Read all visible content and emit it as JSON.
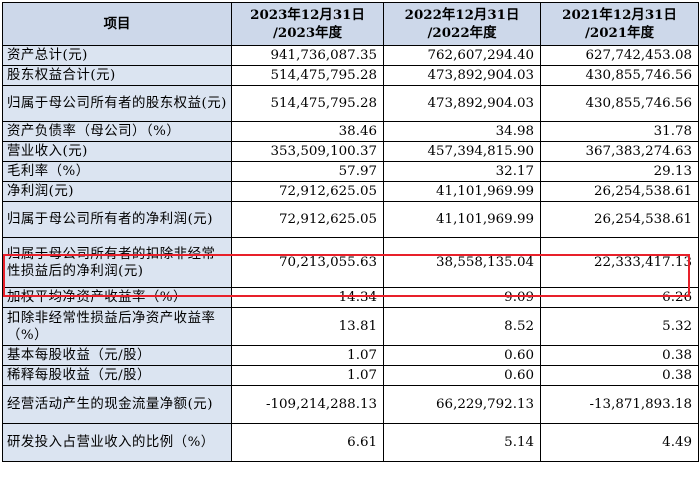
{
  "headers": [
    "项目",
    "2023年12月31日\n/2023年度",
    "2022年12月31日\n/2022年度",
    "2021年12月31日\n/2021年度"
  ],
  "rows": [
    {
      "label": "资产总计(元)",
      "v": [
        "941,736,087.35",
        "762,607,294.40",
        "627,742,453.08"
      ]
    },
    {
      "label": "股东权益合计(元)",
      "v": [
        "514,475,795.28",
        "473,892,904.03",
        "430,855,746.56"
      ]
    },
    {
      "label": "归属于母公司所有者的股东权益(元)",
      "v": [
        "514,475,795.28",
        "473,892,904.03",
        "430,855,746.56"
      ]
    },
    {
      "label": "资产负债率（母公司）（%）",
      "v": [
        "38.46",
        "34.98",
        "31.78"
      ]
    },
    {
      "label": "营业收入(元)",
      "v": [
        "353,509,100.37",
        "457,394,815.90",
        "367,383,274.63"
      ]
    },
    {
      "label": "毛利率（%）",
      "v": [
        "57.97",
        "32.17",
        "29.13"
      ]
    },
    {
      "label": "净利润(元)",
      "v": [
        "72,912,625.05",
        "41,101,969.99",
        "26,254,538.61"
      ]
    },
    {
      "label": "归属于母公司所有者的净利润(元)",
      "v": [
        "72,912,625.05",
        "41,101,969.99",
        "26,254,538.61"
      ]
    },
    {
      "label": "归属于母公司所有者的扣除非经常性损益后的净利润(元)",
      "v": [
        "70,213,055.63",
        "38,558,135.04",
        "22,333,417.13"
      ]
    },
    {
      "label": "加权平均净资产收益率（%）",
      "v": [
        "14.34",
        "9.09",
        "6.26"
      ]
    },
    {
      "label": "扣除非经常性损益后净资产收益率（%）",
      "v": [
        "13.81",
        "8.52",
        "5.32"
      ]
    },
    {
      "label": "基本每股收益（元/股）",
      "v": [
        "1.07",
        "0.60",
        "0.38"
      ]
    },
    {
      "label": "稀释每股收益（元/股）",
      "v": [
        "1.07",
        "0.60",
        "0.38"
      ]
    },
    {
      "label": "经营活动产生的现金流量净额(元)",
      "v": [
        "-109,214,288.13",
        "66,229,792.13",
        "-13,871,893.18"
      ]
    },
    {
      "label": "研发投入占营业收入的比例（%）",
      "v": [
        "6.61",
        "5.14",
        "4.49"
      ]
    }
  ],
  "highlight_color": "#e8202a",
  "header_bg": "#cdd8ea",
  "label_bg": "#dbe4f1"
}
